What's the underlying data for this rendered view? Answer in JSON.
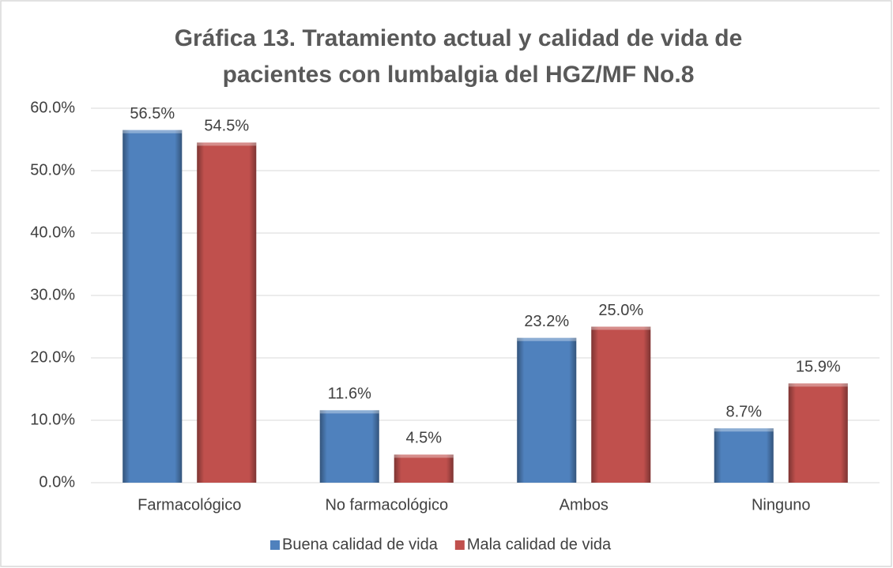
{
  "chart_data": {
    "type": "bar",
    "title": "Gráfica 13. Tratamiento actual y calidad de vida de pacientes con lumbalgia del HGZ/MF No.8",
    "categories": [
      "Farmacológico",
      "No farmacológico",
      "Ambos",
      "Ninguno"
    ],
    "series": [
      {
        "name": "Buena calidad de vida",
        "color": "#4f81bd",
        "values": [
          56.5,
          11.6,
          23.2,
          8.7
        ],
        "value_labels": [
          "56.5%",
          "11.6%",
          "23.2%",
          "8.7%"
        ]
      },
      {
        "name": "Mala calidad de vida",
        "color": "#c0504d",
        "values": [
          54.5,
          4.5,
          25.0,
          15.9
        ],
        "value_labels": [
          "54.5%",
          "4.5%",
          "25.0%",
          "15.9%"
        ]
      }
    ],
    "ylim": [
      0,
      60
    ],
    "yticks": [
      {
        "value": 0,
        "label": "0.0%"
      },
      {
        "value": 10,
        "label": "10.0%"
      },
      {
        "value": 20,
        "label": "20.0%"
      },
      {
        "value": 30,
        "label": "30.0%"
      },
      {
        "value": 40,
        "label": "40.0%"
      },
      {
        "value": 50,
        "label": "50.0%"
      },
      {
        "value": 60,
        "label": "60.0%"
      }
    ],
    "grid": true,
    "legend": "bottom"
  }
}
